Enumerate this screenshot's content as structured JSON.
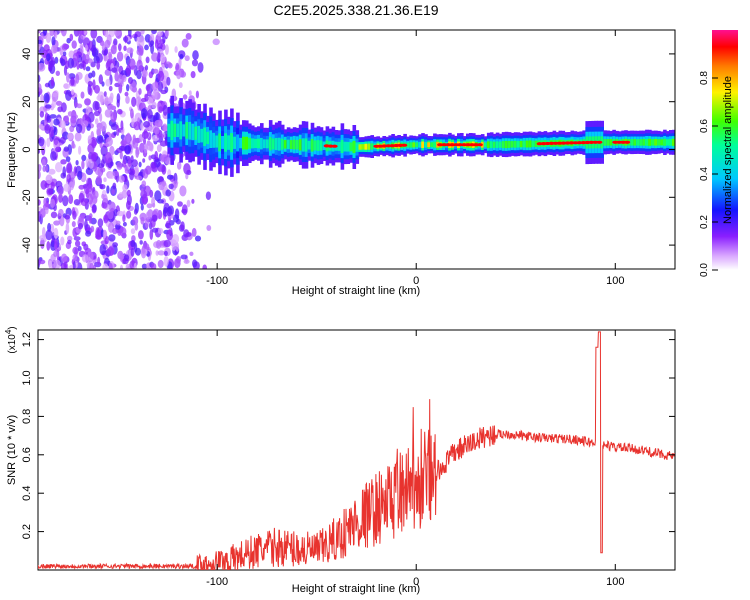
{
  "title": "C2E5.2025.338.21.36.E19",
  "chart_data": [
    {
      "type": "heatmap",
      "xlabel": "Height of straight line (km)",
      "ylabel": "Frequency (Hz)",
      "xlim": [
        -190,
        130
      ],
      "ylim": [
        -50,
        50
      ],
      "x_ticks": [
        -100,
        0,
        100
      ],
      "y_ticks": [
        -40,
        -20,
        0,
        20,
        40
      ],
      "colorbar": {
        "label": "Normalized spectral amplitude",
        "range": [
          0,
          1
        ],
        "ticks": [
          0.0,
          0.2,
          0.4,
          0.6,
          0.8
        ],
        "tick_labels": [
          "0.0",
          "0.2",
          "0.4",
          "0.6",
          "0.8"
        ]
      },
      "band": {
        "center_freq_hz": [
          {
            "x": -115,
            "f": 8
          },
          {
            "x": -100,
            "f": 3
          },
          {
            "x": -60,
            "f": 2
          },
          {
            "x": -30,
            "f": 1
          },
          {
            "x": 0,
            "f": 2
          },
          {
            "x": 40,
            "f": 2
          },
          {
            "x": 90,
            "f": 3
          },
          {
            "x": 130,
            "f": 3
          }
        ],
        "noise_region_x": [
          -190,
          -110
        ]
      }
    },
    {
      "type": "line",
      "xlabel": "Height of straight line (km)",
      "ylabel": "SNR (10 * v/v)",
      "scale_note": "(x10",
      "scale_exp": "4",
      "scale_close": ")",
      "xlim": [
        -190,
        130
      ],
      "ylim": [
        0,
        1.25
      ],
      "x_ticks": [
        -100,
        0,
        100
      ],
      "y_ticks": [
        0.2,
        0.4,
        0.6,
        0.8,
        1.0,
        1.2
      ],
      "y_tick_labels": [
        "0.2",
        "0.4",
        "0.6",
        "0.8",
        "1.0",
        "1.2"
      ],
      "series_color": "#e8332e",
      "envelope": [
        {
          "x": -190,
          "y": 0.02
        },
        {
          "x": -110,
          "y": 0.02
        },
        {
          "x": -95,
          "y": 0.05
        },
        {
          "x": -80,
          "y": 0.1
        },
        {
          "x": -70,
          "y": 0.12
        },
        {
          "x": -50,
          "y": 0.1
        },
        {
          "x": -40,
          "y": 0.16
        },
        {
          "x": -30,
          "y": 0.25
        },
        {
          "x": -20,
          "y": 0.32
        },
        {
          "x": -10,
          "y": 0.38
        },
        {
          "x": 0,
          "y": 0.44
        },
        {
          "x": 10,
          "y": 0.5
        },
        {
          "x": 20,
          "y": 0.62
        },
        {
          "x": 35,
          "y": 0.7
        },
        {
          "x": 45,
          "y": 0.71
        },
        {
          "x": 60,
          "y": 0.69
        },
        {
          "x": 80,
          "y": 0.68
        },
        {
          "x": 90,
          "y": 0.66
        },
        {
          "x": 100,
          "y": 0.64
        },
        {
          "x": 110,
          "y": 0.63
        },
        {
          "x": 120,
          "y": 0.61
        },
        {
          "x": 130,
          "y": 0.59
        }
      ],
      "spike": {
        "x": 92,
        "y_max": 1.24,
        "y_min": 0.09
      }
    }
  ]
}
